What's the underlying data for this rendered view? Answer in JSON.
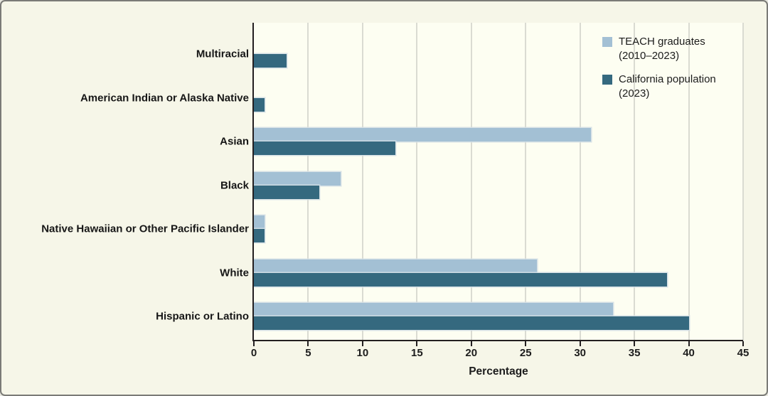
{
  "figure": {
    "background_color": "#f6f6e8",
    "plot_background_color": "#fdfef2",
    "border_color": "#7b7b77",
    "grid_color": "#dadbd2",
    "axis_color": "#231f20",
    "text_color": "#1c1c1c"
  },
  "chart_data": {
    "type": "bar",
    "orientation": "horizontal",
    "title": "",
    "xlabel": "Percentage",
    "ylabel": "",
    "xlim": [
      0,
      45
    ],
    "xticks": [
      0,
      5,
      10,
      15,
      20,
      25,
      30,
      35,
      40,
      45
    ],
    "grid": true,
    "legend_position": "top-right",
    "categories": [
      "Multiracial",
      "American Indian or Alaska Native",
      "Asian",
      "Black",
      "Native Hawaiian or Other Pacific Islander",
      "White",
      "Hispanic or Latino"
    ],
    "series": [
      {
        "name": "TEACH graduates (2010–2023)",
        "label_line1": "TEACH graduates",
        "label_line2": "(2010–2023)",
        "color": "#a3c0d4",
        "values": [
          0,
          0,
          31,
          8,
          1,
          26,
          33
        ]
      },
      {
        "name": "California population (2023)",
        "label_line1": "California population",
        "label_line2": "(2023)",
        "color": "#35697f",
        "values": [
          3,
          1,
          13,
          6,
          1,
          38,
          40
        ]
      }
    ]
  }
}
